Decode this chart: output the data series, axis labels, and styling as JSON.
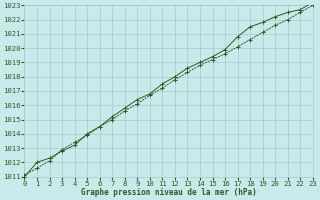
{
  "line1_x": [
    0,
    1,
    2,
    3,
    4,
    5,
    6,
    7,
    8,
    9,
    10,
    11,
    12,
    13,
    14,
    15,
    16,
    17,
    18,
    19,
    20,
    21,
    22,
    23
  ],
  "line1_y": [
    1011.1,
    1011.6,
    1012.1,
    1012.9,
    1013.4,
    1013.9,
    1014.5,
    1015.0,
    1015.6,
    1016.1,
    1016.7,
    1017.2,
    1017.8,
    1018.3,
    1018.8,
    1019.2,
    1019.6,
    1020.1,
    1020.6,
    1021.1,
    1021.6,
    1022.0,
    1022.5,
    1023.0
  ],
  "line2_x": [
    0,
    1,
    2,
    3,
    4,
    5,
    6,
    7,
    8,
    9,
    10,
    11,
    12,
    13,
    14,
    15,
    16,
    17,
    18,
    19,
    20,
    21,
    22,
    23
  ],
  "line2_y": [
    1011.0,
    1012.0,
    1012.3,
    1012.8,
    1013.2,
    1014.0,
    1014.5,
    1015.2,
    1015.8,
    1016.4,
    1016.8,
    1017.5,
    1018.0,
    1018.6,
    1019.0,
    1019.4,
    1019.9,
    1020.8,
    1021.5,
    1021.8,
    1022.2,
    1022.5,
    1022.7,
    1023.2
  ],
  "line_color": "#2d5a27",
  "bg_color": "#c8eaea",
  "grid_color": "#aacaca",
  "text_color": "#2d5a27",
  "xlabel": "Graphe pression niveau de la mer (hPa)",
  "ylim": [
    1011,
    1023
  ],
  "xlim": [
    0,
    23
  ],
  "yticks": [
    1011,
    1012,
    1013,
    1014,
    1015,
    1016,
    1017,
    1018,
    1019,
    1020,
    1021,
    1022,
    1023
  ],
  "xticks": [
    0,
    1,
    2,
    3,
    4,
    5,
    6,
    7,
    8,
    9,
    10,
    11,
    12,
    13,
    14,
    15,
    16,
    17,
    18,
    19,
    20,
    21,
    22,
    23
  ]
}
